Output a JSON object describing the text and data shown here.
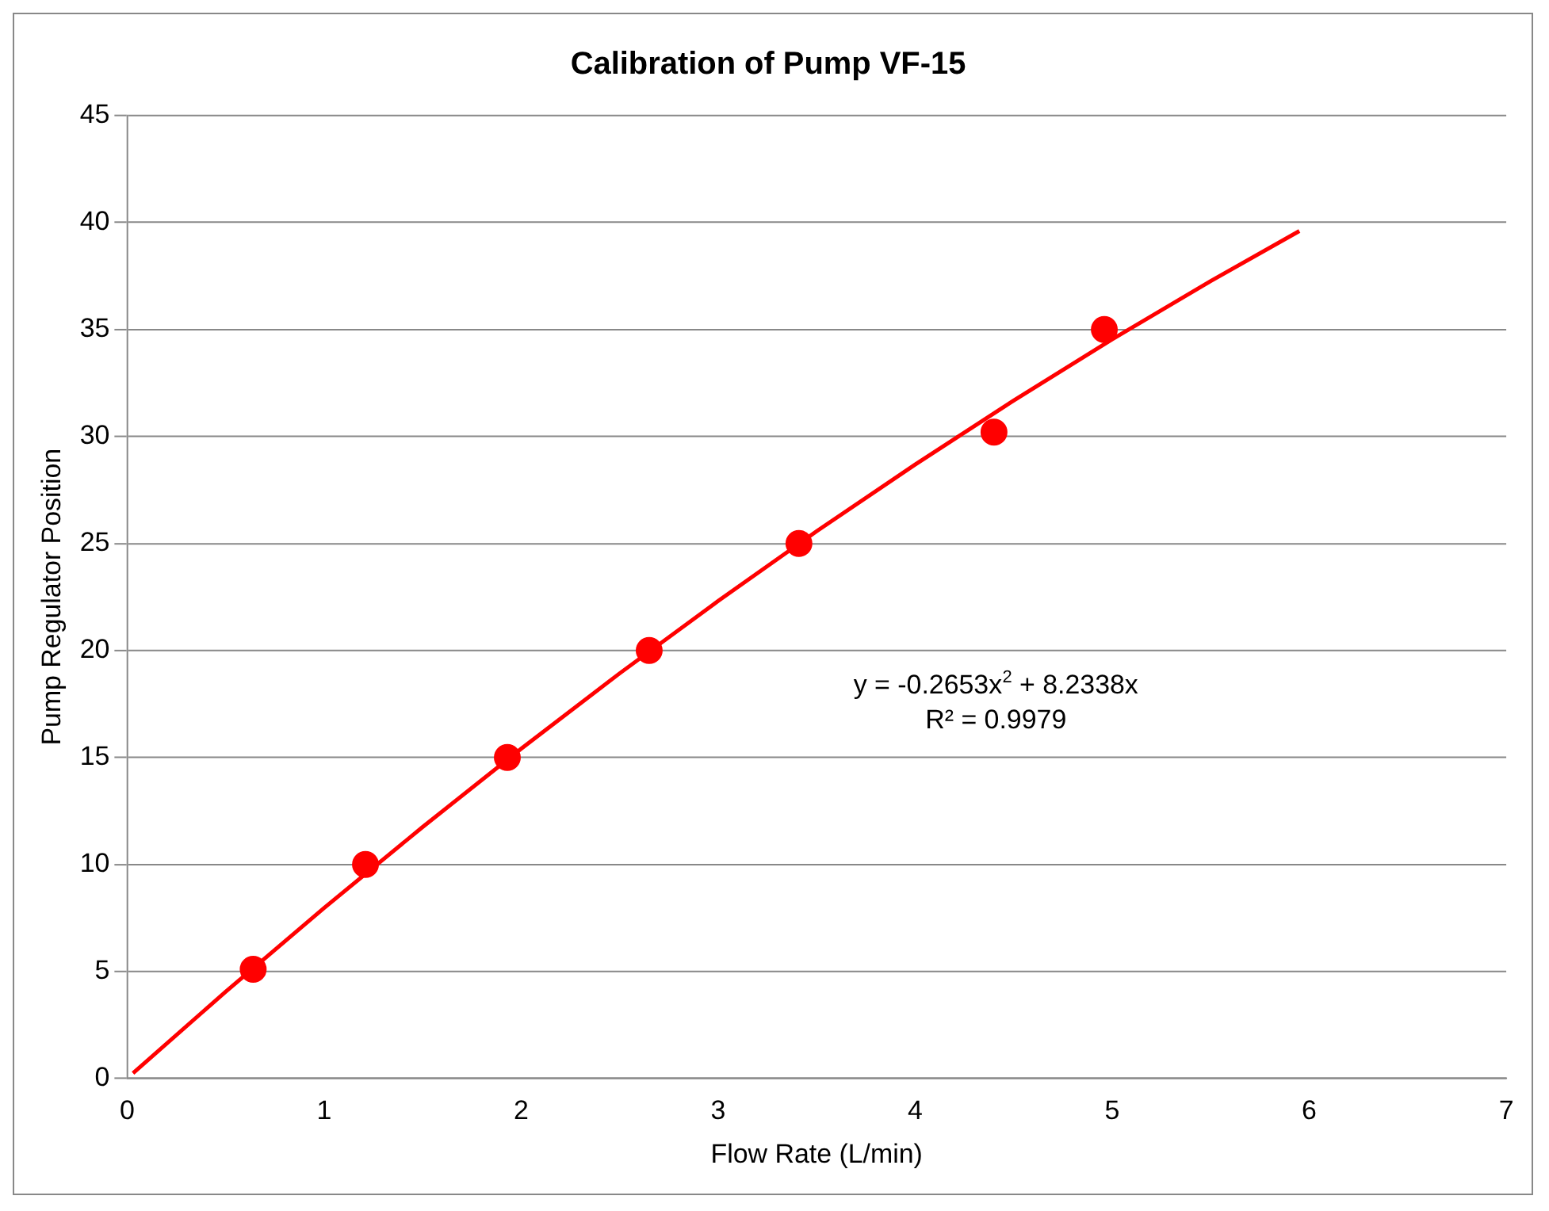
{
  "chart_data": {
    "type": "scatter",
    "title": "Calibration of Pump VF-15",
    "xlabel": "Flow Rate (L/min)",
    "ylabel": "Pump Regulator Position",
    "series": [
      {
        "color": "#ff0000",
        "x": [
          0.64,
          1.21,
          1.93,
          2.65,
          3.41,
          4.4,
          4.96
        ],
        "values": [
          5.1,
          10,
          15,
          20,
          25,
          30.2,
          35
        ],
        "marker": "circle"
      },
      {
        "type": "line",
        "color": "#ff0000",
        "x": [
          0.03,
          0.5,
          1,
          1.5,
          2,
          2.5,
          3,
          3.5,
          4,
          4.5,
          5,
          5.5,
          5.95
        ],
        "values": [
          0.25,
          4.05,
          7.97,
          11.75,
          15.41,
          18.93,
          22.31,
          25.57,
          28.69,
          31.68,
          34.54,
          37.26,
          39.6
        ],
        "marker": "none",
        "line_style": "solid"
      }
    ],
    "annotations": [
      "y = -0.2653x$^{2}$ + 8.2338x",
      "R² = 0.9979"
    ],
    "xlim": [
      0,
      7
    ],
    "xticks": [
      0,
      1,
      2,
      3,
      4,
      5,
      6,
      7
    ],
    "ylim": [
      0,
      45
    ],
    "yticks": [
      0,
      5,
      10,
      15,
      20,
      25,
      30,
      35,
      40,
      45
    ],
    "grid": "y",
    "legend": false
  }
}
